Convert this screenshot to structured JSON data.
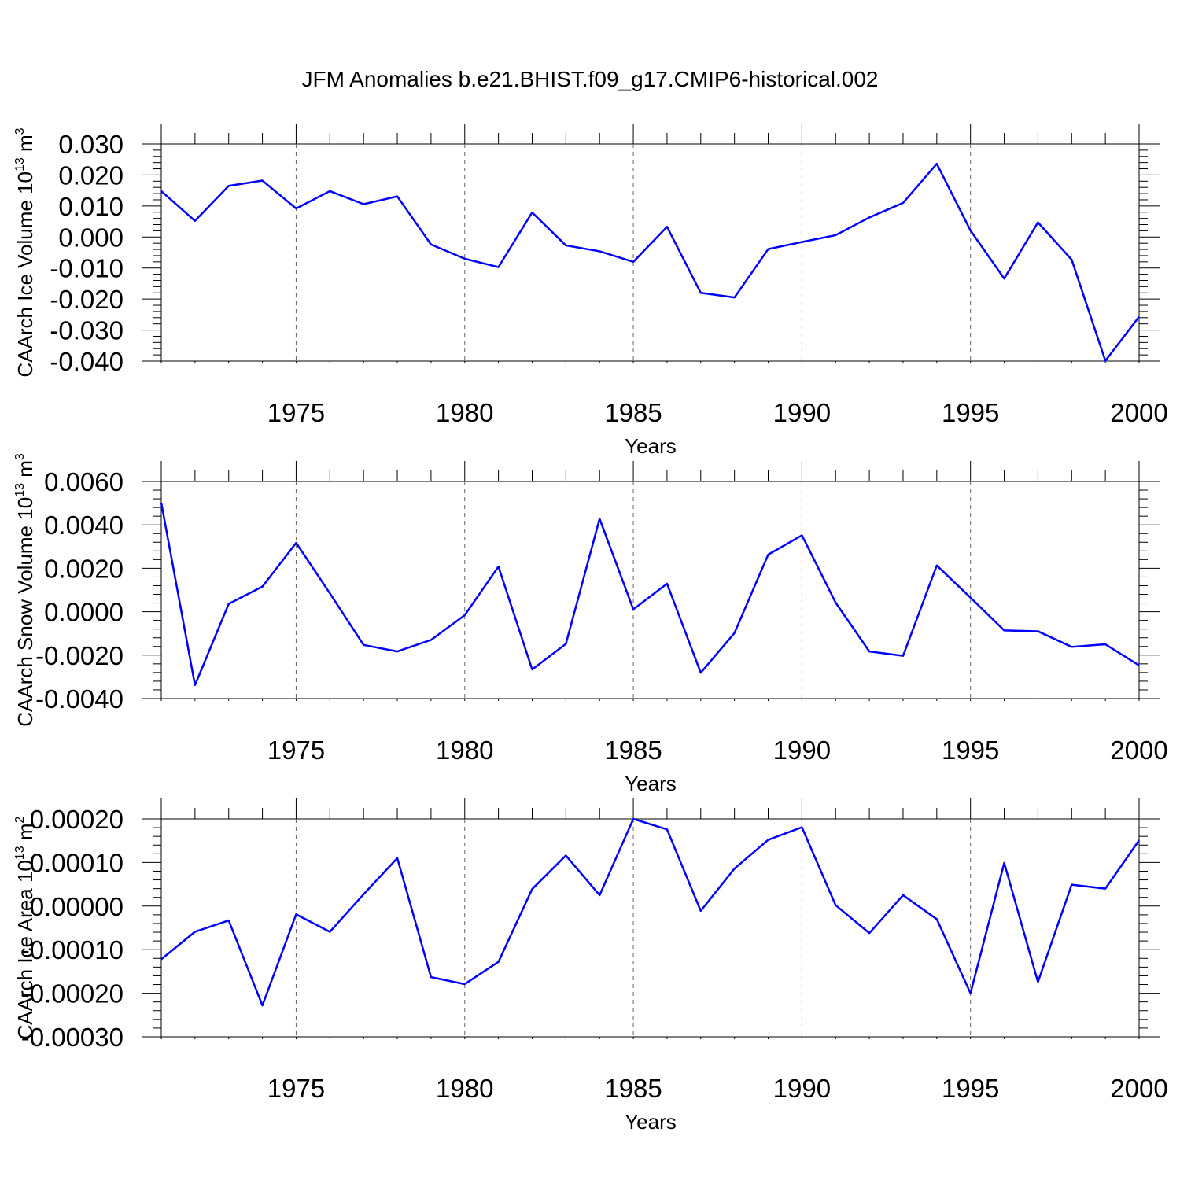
{
  "title": "JFM Anomalies b.e21.BHIST.f09_g17.CMIP6-historical.002",
  "colors": {
    "line": "#0000ff",
    "axis": "#000000",
    "grid": "#666666"
  },
  "chart_data": [
    {
      "type": "line",
      "ylabel": {
        "main": "CAArch Ice Volume 10",
        "sup": "13",
        "unit_main": " m",
        "unit_sup": "3"
      },
      "xlabel": "Years",
      "xlim": [
        1971,
        2000
      ],
      "ylim": [
        -0.04,
        0.03
      ],
      "grid": "vertical dashed at major x ticks",
      "x_ticks": [
        1975,
        1980,
        1985,
        1990,
        1995,
        2000
      ],
      "y_ticks": [
        0.03,
        0.02,
        0.01,
        0.0,
        -0.01,
        -0.02,
        -0.03,
        -0.04
      ],
      "y_tick_labels": [
        "0.030",
        "0.020",
        "0.010",
        "0.000",
        "-0.010",
        "-0.020",
        "-0.030",
        "-0.040"
      ],
      "x": [
        1971,
        1972,
        1973,
        1974,
        1975,
        1976,
        1977,
        1978,
        1979,
        1980,
        1981,
        1982,
        1983,
        1984,
        1985,
        1986,
        1987,
        1988,
        1989,
        1990,
        1991,
        1992,
        1993,
        1994,
        1995,
        1996,
        1997,
        1998,
        1999,
        2000
      ],
      "series": [
        {
          "values": [
            0.0148,
            0.0052,
            0.0165,
            0.0182,
            0.0092,
            0.0148,
            0.0106,
            0.0131,
            -0.0024,
            -0.007,
            -0.0097,
            0.0079,
            -0.0027,
            -0.0046,
            -0.008,
            0.0033,
            -0.018,
            -0.0195,
            -0.0039,
            -0.0016,
            0.0006,
            0.0063,
            0.011,
            0.0236,
            0.0021,
            -0.0134,
            0.0047,
            -0.0073,
            -0.0399,
            -0.0257
          ]
        }
      ]
    },
    {
      "type": "line",
      "ylabel": {
        "main": "CAArch Snow Volume 10",
        "sup": "13",
        "unit_main": " m",
        "unit_sup": "3"
      },
      "xlabel": "Years",
      "xlim": [
        1971,
        2000
      ],
      "ylim": [
        -0.004,
        0.006
      ],
      "grid": "vertical dashed at major x ticks",
      "x_ticks": [
        1975,
        1980,
        1985,
        1990,
        1995,
        2000
      ],
      "y_ticks": [
        0.006,
        0.004,
        0.002,
        0.0,
        -0.002,
        -0.004
      ],
      "y_tick_labels": [
        "0.0060",
        "0.0040",
        "0.0020",
        "0.0000",
        "-0.0020",
        "-0.0040"
      ],
      "x": [
        1971,
        1972,
        1973,
        1974,
        1975,
        1976,
        1977,
        1978,
        1979,
        1980,
        1981,
        1982,
        1983,
        1984,
        1985,
        1986,
        1987,
        1988,
        1989,
        1990,
        1991,
        1992,
        1993,
        1994,
        1995,
        1996,
        1997,
        1998,
        1999,
        2000
      ],
      "series": [
        {
          "values": [
            0.00502,
            -0.00338,
            0.00036,
            0.00116,
            0.00317,
            0.00085,
            -0.00153,
            -0.00183,
            -0.0013,
            -0.00016,
            0.00208,
            -0.00266,
            -0.00148,
            0.00428,
            0.00011,
            0.00129,
            -0.00281,
            -0.00098,
            0.00263,
            0.00352,
            0.00042,
            -0.00183,
            -0.00203,
            0.00213,
            0.00065,
            -0.00086,
            -0.0009,
            -0.00162,
            -0.0015,
            -0.00247
          ]
        }
      ]
    },
    {
      "type": "line",
      "ylabel": {
        "main": "CAArch Ice Area 10",
        "sup": "13",
        "unit_main": " m",
        "unit_sup": "2"
      },
      "xlabel": "Years",
      "xlim": [
        1971,
        2000
      ],
      "ylim": [
        -0.0003,
        0.0002
      ],
      "grid": "vertical dashed at major x ticks",
      "x_ticks": [
        1975,
        1980,
        1985,
        1990,
        1995,
        2000
      ],
      "y_ticks": [
        0.0002,
        0.0001,
        0.0,
        -0.0001,
        -0.0002,
        -0.0003
      ],
      "y_tick_labels": [
        "0.00020",
        "0.00010",
        "0.00000",
        "-0.00010",
        "-0.00020",
        "-0.00030"
      ],
      "x": [
        1971,
        1972,
        1973,
        1974,
        1975,
        1976,
        1977,
        1978,
        1979,
        1980,
        1981,
        1982,
        1983,
        1984,
        1985,
        1986,
        1987,
        1988,
        1989,
        1990,
        1991,
        1992,
        1993,
        1994,
        1995,
        1996,
        1997,
        1998,
        1999,
        2000
      ],
      "series": [
        {
          "values": [
            -0.000122,
            -5.9e-05,
            -3.3e-05,
            -0.000228,
            -1.9e-05,
            -5.9e-05,
            2.7e-05,
            0.00011,
            -0.000163,
            -0.000179,
            -0.000128,
            3.9e-05,
            0.000116,
            2.5e-05,
            0.0002,
            0.000176,
            -1.1e-05,
            8.6e-05,
            0.000152,
            0.000181,
            2e-06,
            -6.2e-05,
            2.5e-05,
            -3e-05,
            -0.0002,
            9.9e-05,
            -0.000174,
            4.9e-05,
            4e-05,
            0.000151
          ]
        }
      ]
    }
  ]
}
